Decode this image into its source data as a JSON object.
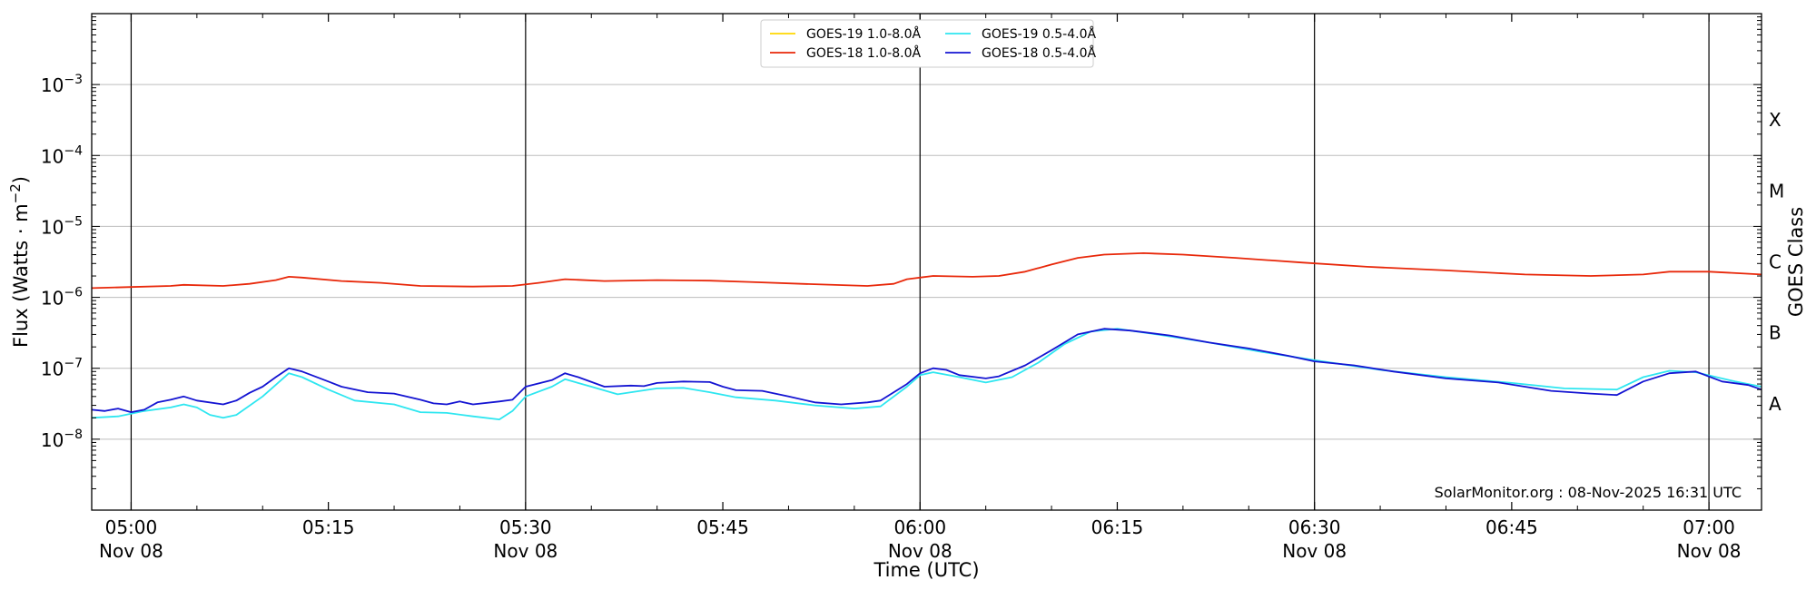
{
  "chart_data": {
    "type": "line",
    "xlabel": "Time (UTC)",
    "ylabel": "Flux (Watts · m⁻²)",
    "right_axis_label": "GOES Class",
    "credit": "SolarMonitor.org : 08-Nov-2025 16:31 UTC",
    "y_scale": "log",
    "ylim": [
      1e-09,
      0.01
    ],
    "xlim": [
      "04:57",
      "07:04"
    ],
    "grid": "horizontal",
    "legend_position": "top-center",
    "x_ticks": [
      {
        "t": "05:00",
        "line1": "05:00",
        "line2": "Nov 08"
      },
      {
        "t": "05:15",
        "line1": "05:15",
        "line2": ""
      },
      {
        "t": "05:30",
        "line1": "05:30",
        "line2": "Nov 08"
      },
      {
        "t": "05:45",
        "line1": "05:45",
        "line2": ""
      },
      {
        "t": "06:00",
        "line1": "06:00",
        "line2": "Nov 08"
      },
      {
        "t": "06:15",
        "line1": "06:15",
        "line2": ""
      },
      {
        "t": "06:30",
        "line1": "06:30",
        "line2": "Nov 08"
      },
      {
        "t": "06:45",
        "line1": "06:45",
        "line2": ""
      },
      {
        "t": "07:00",
        "line1": "07:00",
        "line2": "Nov 08"
      }
    ],
    "vertical_lines": [
      "05:00",
      "05:30",
      "06:00",
      "06:30",
      "07:00"
    ],
    "y_ticks": [
      {
        "value": 1e-08,
        "base": "10",
        "exp": "−8"
      },
      {
        "value": 1e-07,
        "base": "10",
        "exp": "−7"
      },
      {
        "value": 1e-06,
        "base": "10",
        "exp": "−6"
      },
      {
        "value": 1e-05,
        "base": "10",
        "exp": "−5"
      },
      {
        "value": 0.0001,
        "base": "10",
        "exp": "−4"
      },
      {
        "value": 0.001,
        "base": "10",
        "exp": "−3"
      }
    ],
    "goes_classes": [
      {
        "label": "A",
        "value": 3.16e-08
      },
      {
        "label": "B",
        "value": 3.16e-07
      },
      {
        "label": "C",
        "value": 3.16e-06
      },
      {
        "label": "M",
        "value": 3.16e-05
      },
      {
        "label": "X",
        "value": 0.000316
      }
    ],
    "series": [
      {
        "name": "GOES-19 1.0-8.0Å",
        "color": "#FFD700",
        "points": []
      },
      {
        "name": "GOES-18 1.0-8.0Å",
        "color": "#E8280A",
        "points": [
          [
            "04:57",
            1.35e-06
          ],
          [
            "05:00",
            1.4e-06
          ],
          [
            "05:03",
            1.45e-06
          ],
          [
            "05:04",
            1.5e-06
          ],
          [
            "05:07",
            1.45e-06
          ],
          [
            "05:09",
            1.55e-06
          ],
          [
            "05:11",
            1.75e-06
          ],
          [
            "05:12",
            1.95e-06
          ],
          [
            "05:13",
            1.9e-06
          ],
          [
            "05:16",
            1.7e-06
          ],
          [
            "05:19",
            1.6e-06
          ],
          [
            "05:22",
            1.45e-06
          ],
          [
            "05:26",
            1.42e-06
          ],
          [
            "05:29",
            1.45e-06
          ],
          [
            "05:31",
            1.6e-06
          ],
          [
            "05:33",
            1.8e-06
          ],
          [
            "05:36",
            1.7e-06
          ],
          [
            "05:40",
            1.75e-06
          ],
          [
            "05:44",
            1.72e-06
          ],
          [
            "05:47",
            1.65e-06
          ],
          [
            "05:51",
            1.55e-06
          ],
          [
            "05:56",
            1.45e-06
          ],
          [
            "05:58",
            1.55e-06
          ],
          [
            "05:59",
            1.8e-06
          ],
          [
            "06:01",
            2e-06
          ],
          [
            "06:04",
            1.95e-06
          ],
          [
            "06:06",
            2e-06
          ],
          [
            "06:08",
            2.3e-06
          ],
          [
            "06:10",
            2.9e-06
          ],
          [
            "06:12",
            3.6e-06
          ],
          [
            "06:14",
            4e-06
          ],
          [
            "06:17",
            4.2e-06
          ],
          [
            "06:20",
            4e-06
          ],
          [
            "06:24",
            3.6e-06
          ],
          [
            "06:29",
            3.1e-06
          ],
          [
            "06:34",
            2.7e-06
          ],
          [
            "06:40",
            2.4e-06
          ],
          [
            "06:46",
            2.1e-06
          ],
          [
            "06:51",
            2e-06
          ],
          [
            "06:55",
            2.1e-06
          ],
          [
            "06:57",
            2.3e-06
          ],
          [
            "07:00",
            2.3e-06
          ],
          [
            "07:04",
            2.1e-06
          ]
        ]
      },
      {
        "name": "GOES-19 0.5-4.0Å",
        "color": "#2EE6F0",
        "points": [
          [
            "04:57",
            2e-08
          ],
          [
            "04:59",
            2.1e-08
          ],
          [
            "05:01",
            2.5e-08
          ],
          [
            "05:03",
            2.8e-08
          ],
          [
            "05:04",
            3.1e-08
          ],
          [
            "05:05",
            2.8e-08
          ],
          [
            "05:06",
            2.2e-08
          ],
          [
            "05:07",
            2e-08
          ],
          [
            "05:08",
            2.2e-08
          ],
          [
            "05:10",
            4e-08
          ],
          [
            "05:12",
            8.5e-08
          ],
          [
            "05:13",
            7.5e-08
          ],
          [
            "05:15",
            5e-08
          ],
          [
            "05:17",
            3.5e-08
          ],
          [
            "05:20",
            3.1e-08
          ],
          [
            "05:22",
            2.4e-08
          ],
          [
            "05:24",
            2.35e-08
          ],
          [
            "05:26",
            2.1e-08
          ],
          [
            "05:28",
            1.9e-08
          ],
          [
            "05:29",
            2.5e-08
          ],
          [
            "05:30",
            4e-08
          ],
          [
            "05:32",
            5.5e-08
          ],
          [
            "05:33",
            7e-08
          ],
          [
            "05:35",
            5.5e-08
          ],
          [
            "05:37",
            4.3e-08
          ],
          [
            "05:40",
            5.2e-08
          ],
          [
            "05:42",
            5.3e-08
          ],
          [
            "05:44",
            4.6e-08
          ],
          [
            "05:46",
            3.9e-08
          ],
          [
            "05:49",
            3.5e-08
          ],
          [
            "05:52",
            3e-08
          ],
          [
            "05:55",
            2.7e-08
          ],
          [
            "05:57",
            2.9e-08
          ],
          [
            "05:59",
            5.5e-08
          ],
          [
            "06:00",
            8e-08
          ],
          [
            "06:01",
            8.8e-08
          ],
          [
            "06:03",
            7.5e-08
          ],
          [
            "06:05",
            6.3e-08
          ],
          [
            "06:07",
            7.5e-08
          ],
          [
            "06:09",
            1.2e-07
          ],
          [
            "06:11",
            2.2e-07
          ],
          [
            "06:13",
            3.3e-07
          ],
          [
            "06:15",
            3.6e-07
          ],
          [
            "06:18",
            3e-07
          ],
          [
            "06:22",
            2.3e-07
          ],
          [
            "06:26",
            1.7e-07
          ],
          [
            "06:30",
            1.3e-07
          ],
          [
            "06:35",
            9.5e-08
          ],
          [
            "06:40",
            7.5e-08
          ],
          [
            "06:45",
            6.2e-08
          ],
          [
            "06:49",
            5.2e-08
          ],
          [
            "06:53",
            5e-08
          ],
          [
            "06:55",
            7.5e-08
          ],
          [
            "06:57",
            9.2e-08
          ],
          [
            "06:59",
            8.8e-08
          ],
          [
            "07:02",
            6.5e-08
          ],
          [
            "07:04",
            5.5e-08
          ]
        ]
      },
      {
        "name": "GOES-18 0.5-4.0Å",
        "color": "#1414D2",
        "points": [
          [
            "04:57",
            2.6e-08
          ],
          [
            "04:58",
            2.5e-08
          ],
          [
            "04:59",
            2.7e-08
          ],
          [
            "05:00",
            2.4e-08
          ],
          [
            "05:01",
            2.6e-08
          ],
          [
            "05:02",
            3.3e-08
          ],
          [
            "05:03",
            3.6e-08
          ],
          [
            "05:04",
            4e-08
          ],
          [
            "05:05",
            3.5e-08
          ],
          [
            "05:07",
            3.1e-08
          ],
          [
            "05:08",
            3.5e-08
          ],
          [
            "05:09",
            4.5e-08
          ],
          [
            "05:10",
            5.5e-08
          ],
          [
            "05:11",
            7.5e-08
          ],
          [
            "05:12",
            1e-07
          ],
          [
            "05:13",
            9e-08
          ],
          [
            "05:15",
            6.5e-08
          ],
          [
            "05:16",
            5.5e-08
          ],
          [
            "05:18",
            4.6e-08
          ],
          [
            "05:20",
            4.4e-08
          ],
          [
            "05:22",
            3.6e-08
          ],
          [
            "05:23",
            3.2e-08
          ],
          [
            "05:24",
            3.1e-08
          ],
          [
            "05:25",
            3.4e-08
          ],
          [
            "05:26",
            3.1e-08
          ],
          [
            "05:28",
            3.4e-08
          ],
          [
            "05:29",
            3.6e-08
          ],
          [
            "05:30",
            5.5e-08
          ],
          [
            "05:32",
            6.8e-08
          ],
          [
            "05:33",
            8.5e-08
          ],
          [
            "05:34",
            7.5e-08
          ],
          [
            "05:36",
            5.5e-08
          ],
          [
            "05:38",
            5.7e-08
          ],
          [
            "05:39",
            5.6e-08
          ],
          [
            "05:40",
            6.2e-08
          ],
          [
            "05:42",
            6.5e-08
          ],
          [
            "05:44",
            6.4e-08
          ],
          [
            "05:45",
            5.5e-08
          ],
          [
            "05:46",
            4.9e-08
          ],
          [
            "05:48",
            4.8e-08
          ],
          [
            "05:50",
            4e-08
          ],
          [
            "05:52",
            3.3e-08
          ],
          [
            "05:54",
            3.1e-08
          ],
          [
            "05:56",
            3.3e-08
          ],
          [
            "05:57",
            3.5e-08
          ],
          [
            "05:59",
            6e-08
          ],
          [
            "06:00",
            8.5e-08
          ],
          [
            "06:01",
            1e-07
          ],
          [
            "06:02",
            9.5e-08
          ],
          [
            "06:03",
            8e-08
          ],
          [
            "06:05",
            7.2e-08
          ],
          [
            "06:06",
            7.7e-08
          ],
          [
            "06:08",
            1.1e-07
          ],
          [
            "06:10",
            1.8e-07
          ],
          [
            "06:12",
            3e-07
          ],
          [
            "06:14",
            3.6e-07
          ],
          [
            "06:16",
            3.4e-07
          ],
          [
            "06:19",
            2.9e-07
          ],
          [
            "06:22",
            2.3e-07
          ],
          [
            "06:25",
            1.9e-07
          ],
          [
            "06:28",
            1.5e-07
          ],
          [
            "06:30",
            1.25e-07
          ],
          [
            "06:33",
            1.1e-07
          ],
          [
            "06:36",
            9e-08
          ],
          [
            "06:40",
            7.2e-08
          ],
          [
            "06:44",
            6.3e-08
          ],
          [
            "06:48",
            4.8e-08
          ],
          [
            "06:51",
            4.4e-08
          ],
          [
            "06:53",
            4.2e-08
          ],
          [
            "06:55",
            6.5e-08
          ],
          [
            "06:57",
            8.5e-08
          ],
          [
            "06:59",
            9e-08
          ],
          [
            "07:01",
            6.5e-08
          ],
          [
            "07:03",
            5.8e-08
          ],
          [
            "07:04",
            5e-08
          ]
        ]
      }
    ]
  }
}
